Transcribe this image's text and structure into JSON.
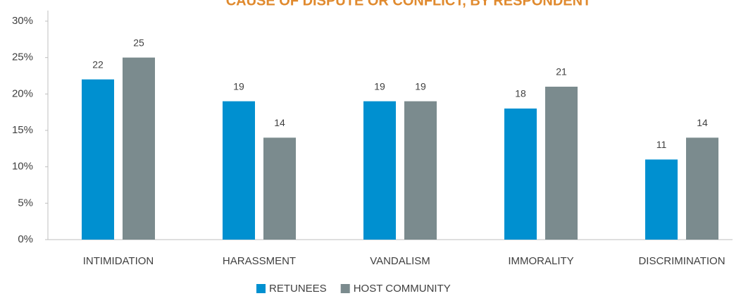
{
  "chart_data": {
    "type": "bar",
    "title": "CAUSE OF DISPUTE OR CONFLICT, BY RESPONDENT",
    "categories": [
      "INTIMIDATION",
      "HARASSMENT",
      "VANDALISM",
      "IMMORALITY",
      "DISCRIMINATION"
    ],
    "series": [
      {
        "name": "RETUNEES",
        "color": "#0090d0",
        "values": [
          22,
          19,
          19,
          18,
          11
        ]
      },
      {
        "name": "HOST COMMUNITY",
        "color": "#7b8b8e",
        "values": [
          25,
          14,
          19,
          21,
          14
        ]
      }
    ],
    "ylim": [
      0,
      30
    ],
    "yticks": [
      {
        "value": 0,
        "label": "0%"
      },
      {
        "value": 5,
        "label": "5%"
      },
      {
        "value": 10,
        "label": "10%"
      },
      {
        "value": 15,
        "label": "15%"
      },
      {
        "value": 20,
        "label": "20%"
      },
      {
        "value": 25,
        "label": "25%"
      },
      {
        "value": 30,
        "label": "30%"
      }
    ],
    "legend": "bottom"
  }
}
